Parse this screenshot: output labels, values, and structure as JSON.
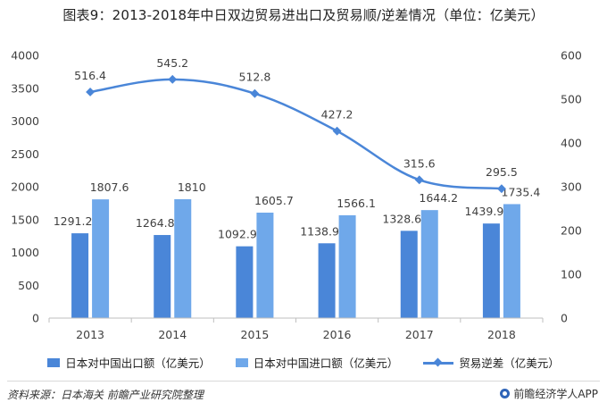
{
  "title": "图表9：2013-2018年中日双边贸易进出口及贸易顺/逆差情况（单位：亿美元）",
  "chart_data": {
    "type": "bar",
    "categories": [
      "2013",
      "2014",
      "2015",
      "2016",
      "2017",
      "2018"
    ],
    "series": [
      {
        "name": "日本对中国出口额（亿美元）",
        "type": "bar",
        "axis": "left",
        "color": "#4a86d8",
        "values": [
          1291.2,
          1264.8,
          1092.9,
          1138.9,
          1328.6,
          1439.9
        ]
      },
      {
        "name": "日本对中国进口额（亿美元）",
        "type": "bar",
        "axis": "left",
        "color": "#6fa8ea",
        "values": [
          1807.6,
          1810,
          1605.7,
          1566.1,
          1644.2,
          1735.4
        ]
      },
      {
        "name": "贸易逆差（亿美元）",
        "type": "line",
        "axis": "right",
        "color": "#4a86d8",
        "values": [
          516.4,
          545.2,
          512.8,
          427.2,
          315.6,
          295.5
        ]
      }
    ],
    "labels": {
      "export": [
        "1291.2",
        "1264.8",
        "1092.9",
        "1138.9",
        "1328.6",
        "1439.9"
      ],
      "import": [
        "1807.6",
        "1810",
        "1605.7",
        "1566.1",
        "1644.2",
        "1735.4"
      ],
      "deficit": [
        "516.4",
        "545.2",
        "512.8",
        "427.2",
        "315.6",
        "295.5"
      ]
    },
    "ylim_left": [
      0,
      4000
    ],
    "yticks_left": [
      0,
      500,
      1000,
      1500,
      2000,
      2500,
      3000,
      3500,
      4000
    ],
    "ylim_right": [
      0,
      600
    ],
    "yticks_right": [
      0,
      100,
      200,
      300,
      400,
      500,
      600
    ],
    "grid": false,
    "legend_position": "bottom"
  },
  "legend": {
    "export_label": "日本对中国出口额（亿美元）",
    "import_label": "日本对中国进口额（亿美元）",
    "deficit_label": "贸易逆差（亿美元）"
  },
  "footer": {
    "source": "资料来源：日本海关 前瞻产业研究院整理",
    "brand": "前瞻经济学人APP"
  },
  "colors": {
    "export_bar": "#4a86d8",
    "import_bar": "#6fa8ea",
    "deficit_line": "#4a86d8",
    "axis": "#bfbfbf",
    "text": "#404040"
  }
}
